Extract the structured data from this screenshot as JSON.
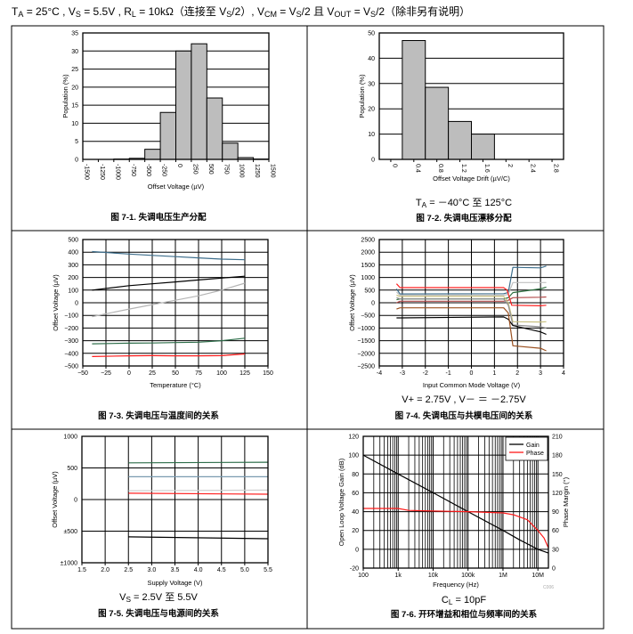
{
  "header": {
    "segments": [
      {
        "t": "T"
      },
      {
        "t": "A",
        "sub": true
      },
      {
        "t": " = 25°C , V"
      },
      {
        "t": "S",
        "sub": true
      },
      {
        "t": " = 5.5V , R"
      },
      {
        "t": "L",
        "sub": true
      },
      {
        "t": " = 10kΩ（连接至 V"
      },
      {
        "t": "S",
        "sub": true
      },
      {
        "t": "/2）, V"
      },
      {
        "t": "CM",
        "sub": true
      },
      {
        "t": " = V"
      },
      {
        "t": "S",
        "sub": true
      },
      {
        "t": "/2 且 V"
      },
      {
        "t": "OUT",
        "sub": true
      },
      {
        "t": " = V"
      },
      {
        "t": "S",
        "sub": true
      },
      {
        "t": "/2（除非另有说明）"
      }
    ]
  },
  "chart_data": [
    {
      "type": "bar",
      "caption": "图 7-1. 失调电压生产分配",
      "xlabel": "Offset Voltage (µV)",
      "ylabel": "Population (%)",
      "xlim": [
        -1500,
        1500
      ],
      "ylim": [
        0,
        35
      ],
      "xticks": [
        -1500,
        -1250,
        -1000,
        -750,
        -500,
        -250,
        0,
        250,
        500,
        750,
        1000,
        1250,
        1500
      ],
      "xtick_labels": [
        "-1500",
        "-1250",
        "-1000",
        "-750",
        "-500",
        "-250",
        "0",
        "250",
        "500",
        "750",
        "1000",
        "1250",
        "1500"
      ],
      "yticks": [
        0,
        5,
        10,
        15,
        20,
        25,
        30,
        35
      ],
      "ytick_labels": [
        "0",
        "5",
        "10",
        "15",
        "20",
        "25",
        "30",
        "35"
      ],
      "grid_y": [
        5,
        10,
        15,
        20,
        25,
        30
      ],
      "bin_edges": [
        -1500,
        -1250,
        -1000,
        -750,
        -500,
        -250,
        0,
        250,
        500,
        750,
        1000,
        1250,
        1500
      ],
      "values": [
        0,
        0,
        0.1,
        0.3,
        2.8,
        13,
        30,
        32,
        17,
        4.5,
        0.5,
        0.1
      ],
      "bar_color": "#bdbdbd"
    },
    {
      "type": "bar",
      "caption": "图 7-2. 失调电压漂移分配",
      "subtitle": [
        {
          "t": "T"
        },
        {
          "t": "A",
          "sub": true
        },
        {
          "t": " = －40°C 至 125°C"
        }
      ],
      "xlabel": "Offset Voltage Drift (µV/C)",
      "ylabel": "Population (%)",
      "xlim": [
        -0.2,
        3.0
      ],
      "ylim": [
        0,
        50
      ],
      "xticks": [
        0,
        0.4,
        0.8,
        1.2,
        1.6,
        2,
        2.4,
        2.8
      ],
      "xtick_labels": [
        "0",
        "0.4",
        "0.8",
        "1.2",
        "1.6",
        "2",
        "2.4",
        "2.8"
      ],
      "yticks": [
        0,
        10,
        20,
        30,
        40,
        50
      ],
      "ytick_labels": [
        "0",
        "10",
        "20",
        "30",
        "40",
        "50"
      ],
      "grid_y": [
        10,
        20,
        30,
        40
      ],
      "bin_edges": [
        0.2,
        0.6,
        1.0,
        1.4,
        1.8
      ],
      "values": [
        47,
        28.5,
        15,
        10
      ],
      "bar_color": "#bdbdbd"
    },
    {
      "type": "line",
      "caption": "图 7-3. 失调电压与温度间的关系",
      "xlabel": "Temperature (°C)",
      "ylabel": "Offset Voltage (µV)",
      "xlim": [
        -50,
        150
      ],
      "ylim": [
        -500,
        500
      ],
      "xticks": [
        -50,
        -25,
        0,
        25,
        50,
        75,
        100,
        125,
        150
      ],
      "xtick_labels": [
        "−50",
        "−25",
        "0",
        "25",
        "50",
        "75",
        "100",
        "125",
        "150"
      ],
      "yticks": [
        -500,
        -400,
        -300,
        -200,
        -100,
        0,
        100,
        200,
        300,
        400,
        500
      ],
      "ytick_labels": [
        "−500",
        "−400",
        "−300",
        "−200",
        "−100",
        "0",
        "100",
        "200",
        "300",
        "400",
        "500"
      ],
      "grid_x": [
        -25,
        0,
        25,
        50,
        75,
        100,
        125
      ],
      "grid_y": [
        -400,
        -300,
        -200,
        -100,
        0,
        100,
        200,
        300,
        400
      ],
      "series": [
        {
          "name": "unit-1",
          "color": "#3d6e8c",
          "x": [
            -40,
            0,
            25,
            50,
            75,
            100,
            125
          ],
          "y": [
            405,
            385,
            375,
            365,
            355,
            345,
            340
          ]
        },
        {
          "name": "unit-2",
          "color": "#000000",
          "x": [
            -40,
            0,
            25,
            50,
            75,
            100,
            125
          ],
          "y": [
            100,
            135,
            150,
            165,
            180,
            195,
            210
          ]
        },
        {
          "name": "unit-3",
          "color": "#b5b5b5",
          "x": [
            -40,
            0,
            25,
            50,
            75,
            100,
            125
          ],
          "y": [
            -110,
            -50,
            -15,
            20,
            55,
            100,
            155
          ]
        },
        {
          "name": "unit-4",
          "color": "#2e6e4a",
          "x": [
            -40,
            0,
            25,
            50,
            75,
            100,
            125
          ],
          "y": [
            -325,
            -320,
            -318,
            -315,
            -312,
            -300,
            -280
          ]
        },
        {
          "name": "unit-5",
          "color": "#ff1a1a",
          "x": [
            -40,
            0,
            25,
            50,
            75,
            100,
            125
          ],
          "y": [
            -425,
            -420,
            -418,
            -420,
            -420,
            -418,
            -405
          ]
        }
      ]
    },
    {
      "type": "line",
      "caption": "图 7-4. 失调电压与共模电压间的关系",
      "subtitle": [
        {
          "t": "V+ = 2.75V , V－ ＝ －2.75V"
        }
      ],
      "xlabel": "Input Common Mode Voltage (V)",
      "ylabel": "Offset Voltage (µV)",
      "xlim": [
        -4,
        4
      ],
      "ylim": [
        -2500,
        2500
      ],
      "xticks": [
        -4,
        -3,
        -2,
        -1,
        0,
        1,
        2,
        3,
        4
      ],
      "xtick_labels": [
        "-4",
        "-3",
        "-2",
        "-1",
        "0",
        "1",
        "2",
        "3",
        "4"
      ],
      "yticks": [
        -2500,
        -2000,
        -1500,
        -1000,
        -500,
        0,
        500,
        1000,
        1500,
        2000,
        2500
      ],
      "ytick_labels": [
        "−2500",
        "−2000",
        "−1500",
        "−1000",
        "−500",
        "0",
        "500",
        "1000",
        "1500",
        "2000",
        "2500"
      ],
      "grid_x": [
        -3,
        -2,
        -1,
        0,
        1,
        2,
        3
      ],
      "grid_y": [
        -2000,
        -1500,
        -1000,
        -500,
        0,
        500,
        1000,
        1500,
        2000
      ],
      "series": [
        {
          "name": "unit-1",
          "color": "#3d6e8c",
          "x": [
            -3.25,
            -3.1,
            1.4,
            1.6,
            1.8,
            3.0,
            3.25
          ],
          "y": [
            550,
            350,
            360,
            400,
            1400,
            1380,
            1450
          ]
        },
        {
          "name": "unit-2",
          "color": "#c0c0c0",
          "x": [
            -3.25,
            -3.1,
            1.4,
            1.6,
            1.8,
            3.0,
            3.25
          ],
          "y": [
            420,
            300,
            300,
            330,
            800,
            800,
            800
          ]
        },
        {
          "name": "unit-3",
          "color": "#2e7040",
          "x": [
            -3.25,
            -3.1,
            1.4,
            1.6,
            1.8,
            3.0,
            3.25
          ],
          "y": [
            120,
            150,
            150,
            200,
            400,
            550,
            620
          ]
        },
        {
          "name": "unit-4",
          "color": "#ff2020",
          "x": [
            -3.25,
            -3.1,
            1.4,
            1.55,
            1.75,
            3.0,
            3.25
          ],
          "y": [
            750,
            600,
            600,
            500,
            -100,
            -120,
            -100
          ]
        },
        {
          "name": "unit-5",
          "color": "#b04848",
          "x": [
            -3.25,
            -3.1,
            1.4,
            1.6,
            1.8,
            3.0,
            3.25
          ],
          "y": [
            0,
            60,
            60,
            100,
            200,
            220,
            230
          ]
        },
        {
          "name": "unit-6",
          "color": "#c8c080",
          "x": [
            -3.25,
            -3.1,
            1.4,
            1.6,
            1.8,
            3.0,
            3.25
          ],
          "y": [
            300,
            250,
            250,
            0,
            -750,
            -760,
            -750
          ]
        },
        {
          "name": "unit-7",
          "color": "#909090",
          "x": [
            -3.25,
            -3.1,
            1.4,
            1.6,
            1.8,
            3.0,
            3.25
          ],
          "y": [
            200,
            150,
            150,
            -100,
            -880,
            -950,
            -1000
          ]
        },
        {
          "name": "unit-8",
          "color": "#000000",
          "x": [
            -3.25,
            -3.1,
            1.4,
            1.6,
            1.8,
            3.0,
            3.25
          ],
          "y": [
            -600,
            -600,
            -560,
            -650,
            -900,
            -1150,
            -1250
          ]
        },
        {
          "name": "unit-9",
          "color": "#9a5020",
          "x": [
            -3.25,
            -3.1,
            1.4,
            1.6,
            1.8,
            3.0,
            3.25
          ],
          "y": [
            -250,
            -200,
            -200,
            -400,
            -1700,
            -1800,
            -1900
          ]
        }
      ]
    },
    {
      "type": "line",
      "caption": "图 7-5. 失调电压与电源间的关系",
      "subtitle": [
        {
          "t": "V"
        },
        {
          "t": "S",
          "sub": true
        },
        {
          "t": " = 2.5V 至 5.5V"
        }
      ],
      "xlabel": "Supply Voltage (V)",
      "ylabel": "Offset Voltage (µV)",
      "xlim": [
        1.5,
        5.5
      ],
      "ylim": [
        -1000,
        1000
      ],
      "xticks": [
        1.5,
        2.0,
        2.5,
        3.0,
        3.5,
        4.0,
        4.5,
        5.0,
        5.5
      ],
      "xtick_labels": [
        "1.5",
        "2.0",
        "2.5",
        "3.0",
        "3.5",
        "4.0",
        "4.5",
        "5.0",
        "5.5"
      ],
      "yticks": [
        -1000,
        -500,
        0,
        500,
        1000
      ],
      "ytick_labels": [
        "±1000",
        "±500",
        "0",
        "500",
        "1000"
      ],
      "grid_x": [
        2.0,
        2.5,
        3.0,
        3.5,
        4.0,
        4.5,
        5.0
      ],
      "grid_y": [
        -500,
        0,
        500
      ],
      "series": [
        {
          "name": "unit-1",
          "color": "#2e6e4a",
          "x": [
            2.5,
            5.5
          ],
          "y": [
            580,
            590
          ]
        },
        {
          "name": "unit-2",
          "color": "#7a9ab0",
          "x": [
            2.5,
            5.5
          ],
          "y": [
            360,
            360
          ]
        },
        {
          "name": "unit-3",
          "color": "#cfcfcf",
          "x": [
            2.5,
            5.5
          ],
          "y": [
            140,
            150
          ]
        },
        {
          "name": "unit-4",
          "color": "#ff2020",
          "x": [
            2.5,
            5.5
          ],
          "y": [
            100,
            85
          ]
        },
        {
          "name": "unit-5",
          "color": "#000000",
          "x": [
            2.5,
            5.5
          ],
          "y": [
            -590,
            -620
          ]
        }
      ]
    },
    {
      "type": "line",
      "caption": "图 7-6. 开环增益和相位与频率间的关系",
      "subtitle": [
        {
          "t": "C"
        },
        {
          "t": "L",
          "sub": true
        },
        {
          "t": " = 10pF"
        }
      ],
      "watermark": "C006",
      "xlabel": "Frequency (Hz)",
      "ylabel": "Open Loop Voltage Gain (dB)",
      "y2label": "Phase Margin (°)",
      "xscale": "log",
      "xlim": [
        100,
        20000000
      ],
      "ylim": [
        -20,
        120
      ],
      "y2lim": [
        0,
        210
      ],
      "xticks": [
        100,
        1000,
        10000,
        100000,
        1000000,
        10000000
      ],
      "xtick_labels": [
        "100",
        "1k",
        "10k",
        "100k",
        "1M",
        "10M"
      ],
      "yticks": [
        -20,
        0,
        20,
        40,
        60,
        80,
        100,
        120
      ],
      "ytick_labels": [
        "-20",
        "0",
        "20",
        "40",
        "60",
        "80",
        "100",
        "120"
      ],
      "y2ticks": [
        0,
        30,
        60,
        90,
        120,
        150,
        180,
        210
      ],
      "y2tick_labels": [
        "0",
        "30",
        "60",
        "90",
        "120",
        "150",
        "180",
        "210"
      ],
      "grid_y": [
        0,
        20,
        40,
        60,
        80,
        100
      ],
      "legend": {
        "position": "top-right",
        "entries": [
          {
            "label": "Gain",
            "color": "#000000"
          },
          {
            "label": "Phase",
            "color": "#ff1a1a"
          }
        ]
      },
      "series": [
        {
          "name": "Gain",
          "color": "#000000",
          "axis": "left",
          "x": [
            100,
            1000,
            10000,
            100000,
            1000000,
            3000000,
            10000000,
            20000000
          ],
          "y": [
            100,
            80,
            60,
            40,
            20,
            10,
            0,
            -4
          ]
        },
        {
          "name": "Phase",
          "color": "#ff1a1a",
          "axis": "right",
          "x": [
            100,
            1000,
            2000,
            10000,
            100000,
            1000000,
            2000000,
            5000000,
            10000000,
            15000000,
            20000000
          ],
          "y": [
            95,
            95,
            92,
            91,
            90,
            88,
            85,
            77,
            60,
            48,
            32
          ]
        }
      ]
    }
  ]
}
